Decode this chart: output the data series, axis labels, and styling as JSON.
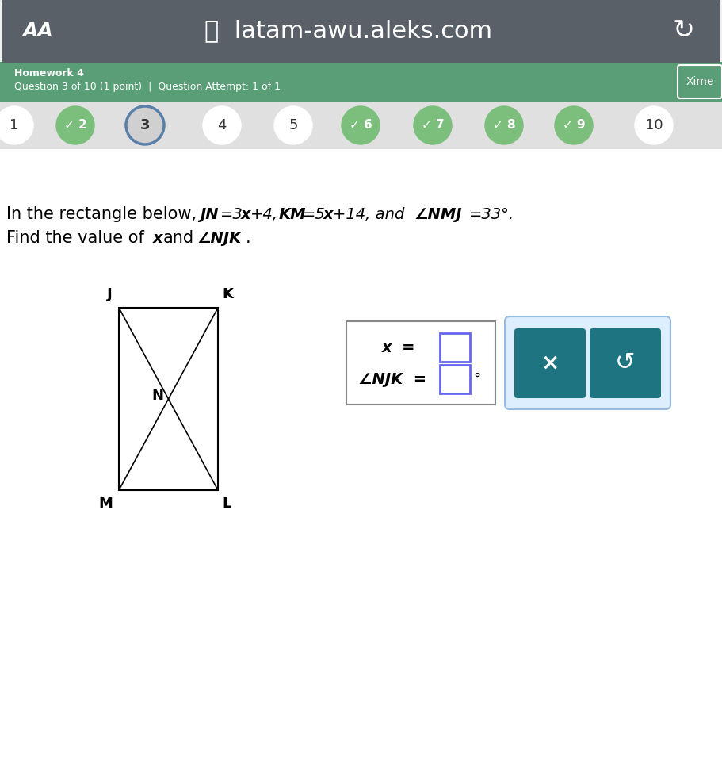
{
  "browser_bar_color": "#5a6068",
  "browser_bar_text": "latam-awu.aleks.com",
  "aa_text": "AA",
  "header_bg_color": "#5a9e78",
  "header_text1": "Homework 4",
  "header_text2": "Question 3 of 10 (1 point)  |  Question Attempt: 1 of 1",
  "xime_text": "Xime",
  "nav_bg_color": "#e0e0e0",
  "nav_buttons": [
    "1",
    "✓ 2",
    "3",
    "4",
    "5",
    "✓ 6",
    "✓ 7",
    "✓ 8",
    "✓ 9",
    "10"
  ],
  "nav_active": 2,
  "nav_checked": [
    1,
    5,
    6,
    7,
    8
  ],
  "nav_green_color": "#7cbf7c",
  "nav_active_border": "#5a7fa8",
  "page_bg_color": "#efefef",
  "button_x_color": "#1e7480",
  "button_x_text": "×",
  "button_refresh_text": "↺",
  "input_highlight_color": "#6666ee"
}
